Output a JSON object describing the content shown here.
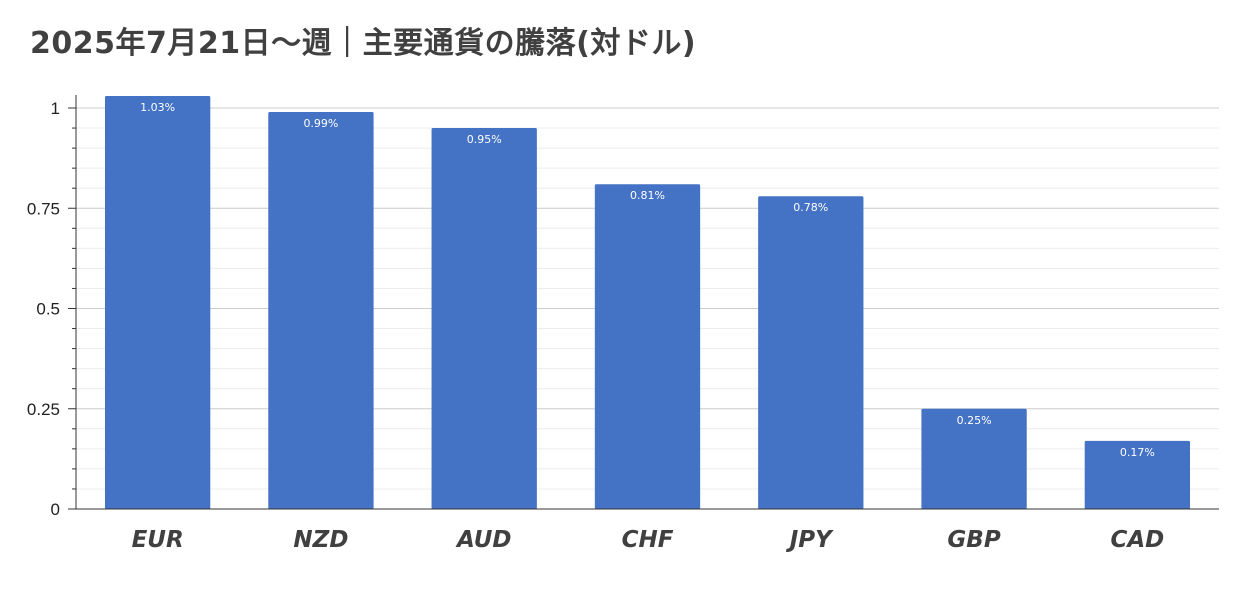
{
  "chart_data": {
    "type": "bar",
    "title": "2025年7月21日～週｜主要通貨の騰落(対ドル)",
    "xlabel": "",
    "ylabel": "",
    "categories": [
      "EUR",
      "NZD",
      "AUD",
      "CHF",
      "JPY",
      "GBP",
      "CAD"
    ],
    "values": [
      1.03,
      0.99,
      0.95,
      0.81,
      0.78,
      0.25,
      0.17
    ],
    "data_labels": [
      "1.03%",
      "0.99%",
      "0.95%",
      "0.81%",
      "0.78%",
      "0.25%",
      "0.17%"
    ],
    "ylim": [
      0,
      1
    ],
    "y_ticks": [
      {
        "value": 0,
        "label": "0"
      },
      {
        "value": 0.25,
        "label": "0.25"
      },
      {
        "value": 0.5,
        "label": "0.5"
      },
      {
        "value": 0.75,
        "label": "0.75"
      },
      {
        "value": 1,
        "label": "1"
      }
    ],
    "minor_ticks_per_major": 5,
    "grid": true,
    "legend": "none",
    "colors": {
      "bar": "#4472c4",
      "bar_label": "#ffffff",
      "major_grid": "#cccccc",
      "minor_grid": "#ececec",
      "axis": "#333333"
    }
  }
}
